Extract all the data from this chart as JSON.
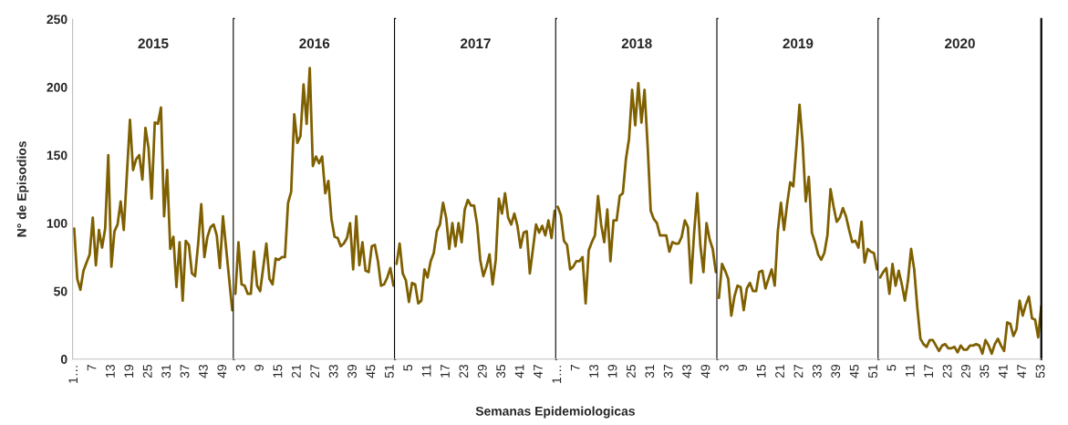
{
  "chart_data": [
    {
      "type": "line",
      "title": "2015",
      "ylabel": "N° de Episodios",
      "series": [
        {
          "color": "#7f6000",
          "x": [
            1,
            2,
            3,
            4,
            6,
            7,
            8,
            9,
            10,
            11,
            12,
            13,
            14,
            15,
            16,
            17,
            19,
            20,
            21,
            22,
            23,
            24,
            25,
            26,
            27,
            28,
            29,
            30,
            31,
            32,
            33,
            34,
            35,
            36,
            37,
            38,
            39,
            40,
            41,
            42,
            43,
            44,
            45,
            46,
            47,
            48,
            49,
            50,
            51,
            52
          ],
          "values": [
            96,
            59,
            51,
            65,
            77,
            104,
            69,
            95,
            82,
            96,
            150,
            68,
            94,
            99,
            116,
            95,
            176,
            139,
            147,
            150,
            132,
            170,
            155,
            118,
            174,
            173,
            185,
            105,
            139,
            81,
            90,
            53,
            86,
            43,
            87,
            84,
            63,
            61,
            85,
            114,
            75,
            90,
            97,
            99,
            91,
            67,
            105,
            82,
            59,
            36
          ]
        }
      ],
      "xlim": [
        0.5,
        52.5
      ],
      "xticks": [
        {
          "value": 1,
          "label": "1…"
        },
        7,
        13,
        19,
        25,
        31,
        37,
        43,
        49
      ],
      "ylim": [
        0,
        250
      ],
      "yticks": [
        0,
        50,
        100,
        150,
        200,
        250
      ],
      "grid": false,
      "legend": false,
      "marker": "none",
      "line_style": "solid"
    },
    {
      "type": "line",
      "title": "2016",
      "series": [
        {
          "color": "#7f6000",
          "x": [
            1,
            2,
            3,
            4,
            5,
            6,
            7,
            8,
            9,
            11,
            12,
            13,
            14,
            15,
            16,
            17,
            18,
            19,
            20,
            21,
            22,
            23,
            24,
            25,
            26,
            27,
            28,
            29,
            30,
            31,
            32,
            33,
            34,
            35,
            36,
            37,
            38,
            39,
            40,
            41,
            42,
            43,
            44,
            45,
            46,
            47,
            48,
            49,
            50,
            51,
            52
          ],
          "values": [
            48,
            86,
            55,
            54,
            48,
            48,
            79,
            54,
            50,
            85,
            59,
            55,
            74,
            73,
            75,
            75,
            115,
            123,
            180,
            159,
            164,
            202,
            173,
            214,
            142,
            149,
            144,
            149,
            122,
            131,
            103,
            90,
            89,
            83,
            85,
            89,
            100,
            66,
            105,
            69,
            86,
            65,
            64,
            83,
            84,
            72,
            54,
            55,
            60,
            67,
            54
          ]
        }
      ],
      "xlim": [
        0.5,
        52.5
      ],
      "xticks": [
        3,
        9,
        15,
        21,
        27,
        33,
        39,
        45,
        51
      ],
      "ylim": [
        0,
        250
      ],
      "tick_labels": "x",
      "grid": false,
      "legend": false,
      "marker": "none",
      "line_style": "solid"
    },
    {
      "type": "line",
      "title": "2017",
      "series": [
        {
          "color": "#7f6000",
          "x": [
            1,
            2,
            3,
            4,
            5,
            6,
            7,
            8,
            9,
            10,
            11,
            12,
            13,
            14,
            15,
            16,
            17,
            18,
            19,
            20,
            21,
            22,
            23,
            24,
            25,
            26,
            27,
            28,
            29,
            30,
            31,
            32,
            33,
            34,
            35,
            36,
            37,
            38,
            39,
            40,
            41,
            42,
            43,
            44,
            45,
            46,
            47,
            48,
            49,
            50,
            51,
            52
          ],
          "values": [
            70,
            85,
            63,
            58,
            42,
            56,
            55,
            41,
            43,
            66,
            60,
            72,
            78,
            94,
            99,
            115,
            104,
            81,
            100,
            83,
            100,
            86,
            110,
            117,
            113,
            113,
            99,
            73,
            61,
            68,
            77,
            55,
            73,
            118,
            107,
            122,
            104,
            99,
            107,
            98,
            82,
            93,
            94,
            63,
            81,
            99,
            93,
            98,
            91,
            102,
            89,
            109
          ]
        }
      ],
      "xlim": [
        0.5,
        52.5
      ],
      "xticks": [
        5,
        11,
        17,
        23,
        29,
        35,
        41,
        47
      ],
      "ylim": [
        0,
        250
      ],
      "tick_labels": "x",
      "grid": false,
      "legend": false,
      "marker": "none",
      "line_style": "solid"
    },
    {
      "type": "line",
      "title": "2018",
      "xlabel": "Semanas Epidemiologicas",
      "series": [
        {
          "color": "#7f6000",
          "x": [
            1,
            2,
            3,
            4,
            5,
            6,
            7,
            8,
            9,
            10,
            11,
            12,
            13,
            14,
            15,
            16,
            17,
            18,
            19,
            20,
            21,
            22,
            23,
            24,
            25,
            26,
            27,
            28,
            29,
            30,
            31,
            32,
            33,
            34,
            35,
            36,
            37,
            38,
            39,
            40,
            41,
            42,
            43,
            44,
            45,
            46,
            47,
            48,
            49,
            50,
            51,
            52
          ],
          "values": [
            112,
            106,
            87,
            84,
            66,
            68,
            72,
            72,
            75,
            41,
            80,
            86,
            91,
            120,
            99,
            86,
            110,
            72,
            102,
            102,
            120,
            122,
            147,
            162,
            198,
            172,
            203,
            174,
            198,
            157,
            109,
            103,
            100,
            91,
            91,
            91,
            79,
            86,
            85,
            85,
            90,
            102,
            97,
            56,
            93,
            122,
            84,
            64,
            100,
            88,
            81,
            64
          ]
        }
      ],
      "xlim": [
        0.5,
        52.5
      ],
      "xticks": [
        {
          "value": 1,
          "label": "1…"
        },
        7,
        13,
        19,
        25,
        31,
        37,
        43,
        49
      ],
      "ylim": [
        0,
        250
      ],
      "tick_labels": "x",
      "grid": false,
      "legend": false,
      "marker": "none",
      "line_style": "solid"
    },
    {
      "type": "line",
      "title": "2019",
      "series": [
        {
          "color": "#7f6000",
          "x": [
            1,
            2,
            3,
            4,
            5,
            6,
            7,
            8,
            9,
            10,
            11,
            12,
            13,
            14,
            15,
            16,
            17,
            18,
            19,
            20,
            21,
            22,
            23,
            24,
            25,
            26,
            27,
            28,
            29,
            30,
            31,
            32,
            33,
            34,
            35,
            36,
            37,
            38,
            39,
            40,
            41,
            42,
            43,
            44,
            45,
            46,
            47,
            48,
            49,
            50,
            51,
            52
          ],
          "values": [
            45,
            70,
            65,
            59,
            32,
            46,
            54,
            53,
            36,
            52,
            56,
            50,
            50,
            64,
            65,
            52,
            59,
            66,
            54,
            94,
            115,
            95,
            114,
            130,
            127,
            156,
            187,
            159,
            116,
            134,
            93,
            86,
            77,
            73,
            78,
            91,
            125,
            112,
            101,
            104,
            111,
            105,
            95,
            86,
            87,
            82,
            101,
            71,
            81,
            79,
            78,
            66
          ]
        }
      ],
      "xlim": [
        0.5,
        52.5
      ],
      "xticks": [
        3,
        9,
        15,
        21,
        27,
        33,
        39,
        45,
        51
      ],
      "ylim": [
        0,
        250
      ],
      "tick_labels": "x",
      "grid": false,
      "legend": false,
      "marker": "none",
      "line_style": "solid"
    },
    {
      "type": "line",
      "title": "2020",
      "series": [
        {
          "color": "#7f6000",
          "x": [
            1,
            2,
            3,
            4,
            5,
            6,
            7,
            8,
            9,
            10,
            11,
            12,
            13,
            14,
            15,
            16,
            17,
            18,
            19,
            20,
            21,
            22,
            23,
            24,
            25,
            26,
            27,
            28,
            29,
            30,
            31,
            32,
            33,
            34,
            35,
            36,
            37,
            38,
            39,
            40,
            41,
            42,
            43,
            44,
            45,
            46,
            47,
            48,
            49,
            50,
            51,
            52,
            53
          ],
          "values": [
            60,
            64,
            67,
            48,
            70,
            54,
            65,
            55,
            43,
            58,
            81,
            66,
            38,
            15,
            11,
            9,
            14,
            14,
            10,
            6,
            10,
            11,
            8,
            8,
            9,
            5,
            10,
            7,
            7,
            10,
            10,
            11,
            10,
            4,
            14,
            10,
            4,
            11,
            15,
            10,
            6,
            27,
            26,
            17,
            22,
            43,
            32,
            40,
            46,
            30,
            29,
            16,
            39
          ]
        }
      ],
      "xlim": [
        0.5,
        53
      ],
      "xticks": [
        5,
        11,
        17,
        23,
        29,
        35,
        41,
        47,
        53
      ],
      "ylim": [
        0,
        250
      ],
      "tick_labels": "x",
      "grid": false,
      "legend": false,
      "marker": "none",
      "line_style": "solid"
    }
  ]
}
